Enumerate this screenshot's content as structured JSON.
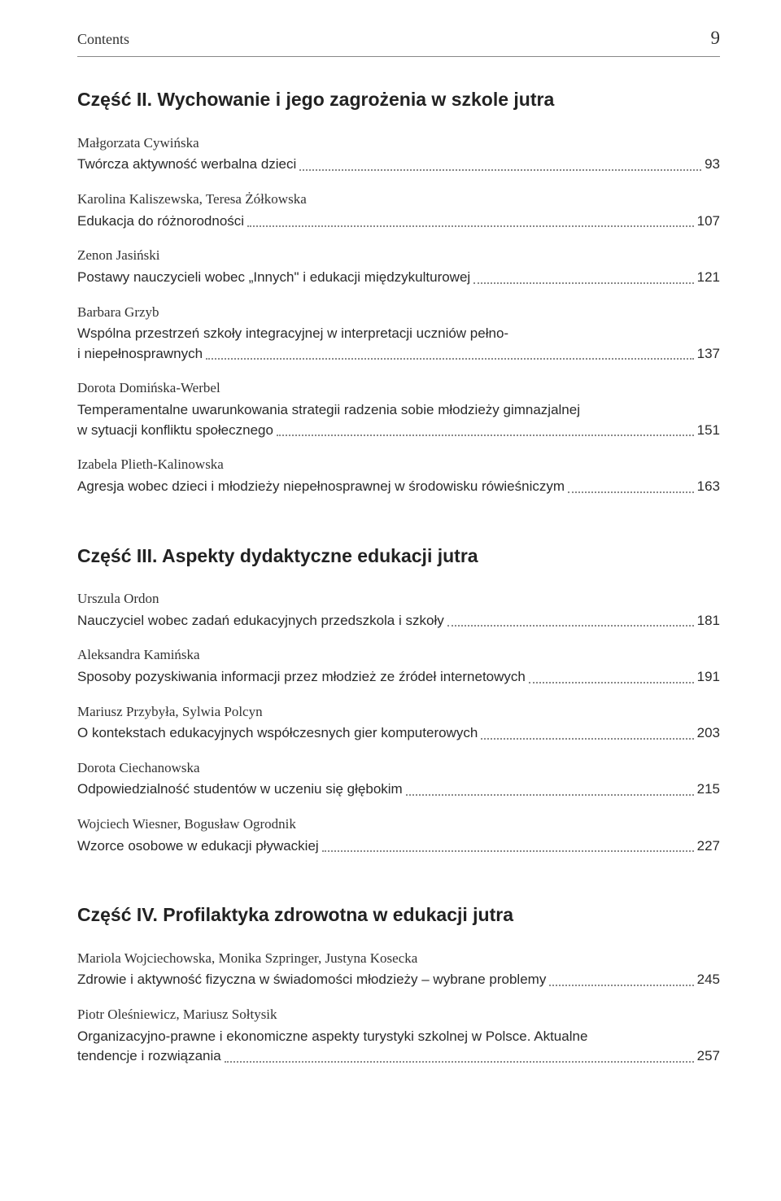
{
  "header": {
    "title": "Contents",
    "page": "9"
  },
  "sections": [
    {
      "title": "Część II. Wychowanie i jego zagrożenia w szkole jutra",
      "entries": [
        {
          "author": "Małgorzata Cywińska",
          "lines": [
            "Twórcza aktywność werbalna dzieci"
          ],
          "page": "93"
        },
        {
          "author": "Karolina Kaliszewska, Teresa Żółkowska",
          "lines": [
            "Edukacja do różnorodności"
          ],
          "page": "107"
        },
        {
          "author": "Zenon Jasiński",
          "lines": [
            "Postawy nauczycieli wobec „Innych\" i edukacji międzykulturowej"
          ],
          "page": "121"
        },
        {
          "author": "Barbara Grzyb",
          "lines": [
            "Wspólna przestrzeń szkoły integracyjnej w interpretacji uczniów pełno-",
            "i niepełnosprawnych"
          ],
          "page": "137"
        },
        {
          "author": "Dorota Domińska-Werbel",
          "lines": [
            "Temperamentalne uwarunkowania strategii radzenia sobie młodzieży gimnazjalnej",
            "w sytuacji konfliktu społecznego"
          ],
          "page": "151"
        },
        {
          "author": "Izabela Plieth-Kalinowska",
          "lines": [
            "Agresja wobec dzieci i młodzieży niepełnosprawnej w środowisku rówieśniczym"
          ],
          "page": "163"
        }
      ]
    },
    {
      "title": "Część III. Aspekty dydaktyczne edukacji jutra",
      "entries": [
        {
          "author": "Urszula Ordon",
          "lines": [
            "Nauczyciel wobec zadań edukacyjnych przedszkola i szkoły"
          ],
          "page": "181"
        },
        {
          "author": "Aleksandra Kamińska",
          "lines": [
            "Sposoby pozyskiwania informacji przez młodzież ze źródeł internetowych"
          ],
          "page": "191"
        },
        {
          "author": "Mariusz Przybyła, Sylwia Polcyn",
          "lines": [
            "O kontekstach edukacyjnych współczesnych gier komputerowych"
          ],
          "page": "203"
        },
        {
          "author": "Dorota Ciechanowska",
          "lines": [
            "Odpowiedzialność studentów w uczeniu się głębokim"
          ],
          "page": "215"
        },
        {
          "author": "Wojciech Wiesner, Bogusław Ogrodnik",
          "lines": [
            "Wzorce osobowe w edukacji pływackiej"
          ],
          "page": "227"
        }
      ]
    },
    {
      "title": "Część IV. Profilaktyka zdrowotna w edukacji jutra",
      "entries": [
        {
          "author": "Mariola Wojciechowska, Monika Szpringer, Justyna Kosecka",
          "lines": [
            "Zdrowie i aktywność fizyczna w świadomości młodzieży – wybrane problemy"
          ],
          "page": "245"
        },
        {
          "author": "Piotr Oleśniewicz, Mariusz Sołtysik",
          "lines": [
            "Organizacyjno-prawne i ekonomiczne aspekty turystyki szkolnej w Polsce. Aktualne",
            "tendencje i rozwiązania"
          ],
          "page": "257"
        }
      ]
    }
  ]
}
